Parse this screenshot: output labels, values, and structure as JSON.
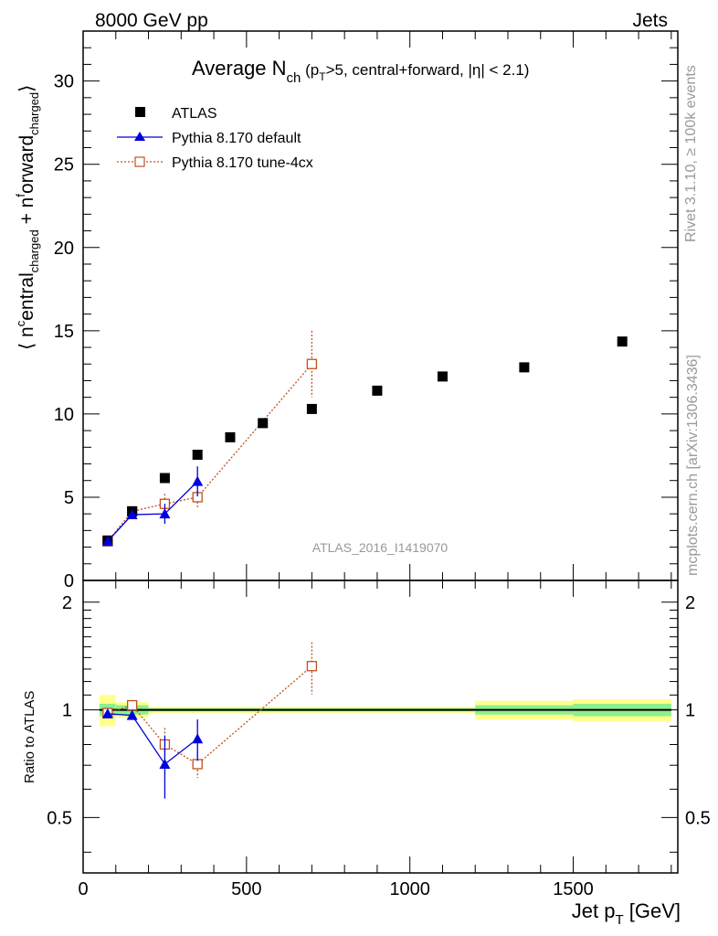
{
  "header": {
    "left": "8000 GeV pp",
    "right": "Jets"
  },
  "side_labels": {
    "rivet": "Rivet 3.1.10, ≥ 100k events",
    "mcplots": "mcplots.cern.ch [arXiv:1306.3436]"
  },
  "title": {
    "main": "Average N",
    "sub": "ch",
    "cut_a": " (p",
    "cut_sub": "T",
    "cut_b": ">5, central+forward, |η| < 2.1)"
  },
  "analysis_id": "ATLAS_2016_I1419070",
  "y_axis": {
    "open": "⟨ n",
    "sup1": "c",
    "mid1": "entral",
    "sub1": "charged",
    "mid2": " + n",
    "sup2": "f",
    "mid3": "orward",
    "sub2": "charged",
    "close": "⟩"
  },
  "x_axis": {
    "label_main": "Jet p",
    "label_sub": "T",
    "label_unit": " [GeV]"
  },
  "ratio_ylabel": "Ratio to ATLAS",
  "legend": [
    {
      "name": "ATLAS",
      "color": "#000000",
      "marker": "filled-square"
    },
    {
      "name": "Pythia 8.170 default",
      "color": "#0000dd",
      "marker": "filled-triangle"
    },
    {
      "name": "Pythia 8.170 tune-4cx",
      "color": "#c0501e",
      "marker": "open-square"
    }
  ],
  "chart_data": [
    {
      "type": "scatter",
      "panel": "main",
      "xlim": [
        0,
        1820
      ],
      "ylim": [
        0,
        33
      ],
      "xticks": [
        0,
        500,
        1000,
        1500
      ],
      "yticks": [
        0,
        5,
        10,
        15,
        20,
        25,
        30
      ],
      "xlabel": "Jet pT [GeV]",
      "ylabel": "⟨ n_central_charged + n_forward_charged ⟩",
      "series": [
        {
          "name": "ATLAS",
          "color": "#000000",
          "x": [
            75,
            150,
            250,
            350,
            450,
            550,
            700,
            900,
            1100,
            1350,
            1650
          ],
          "y": [
            2.4,
            4.15,
            6.15,
            7.55,
            8.6,
            9.45,
            10.3,
            11.4,
            12.25,
            12.8,
            14.35
          ]
        },
        {
          "name": "Pythia 8.170 default",
          "color": "#0000dd",
          "x": [
            75,
            150,
            250,
            350
          ],
          "y": [
            2.35,
            3.95,
            4.0,
            5.95
          ],
          "yerr": [
            0.1,
            0.15,
            0.6,
            0.9
          ]
        },
        {
          "name": "Pythia 8.170 tune-4cx",
          "color": "#c0501e",
          "x": [
            75,
            150,
            250,
            350,
            700
          ],
          "y": [
            2.35,
            4.15,
            4.6,
            5.0,
            13.0
          ],
          "yerr": [
            0.05,
            0.15,
            0.6,
            0.6,
            2.0
          ]
        }
      ]
    },
    {
      "type": "scatter",
      "panel": "ratio",
      "xlim": [
        0,
        1820
      ],
      "ylim": [
        0.35,
        2.3
      ],
      "yticks": [
        0.5,
        1,
        2
      ],
      "ylabel": "Ratio to ATLAS",
      "reference_line": 1.0,
      "uncertainty_bands": [
        {
          "x0": 50,
          "x1": 100,
          "stat": 0.04,
          "total": 0.1
        },
        {
          "x0": 100,
          "x1": 200,
          "stat": 0.03,
          "total": 0.05
        },
        {
          "x0": 200,
          "x1": 1200,
          "stat": 0.01,
          "total": 0.02
        },
        {
          "x0": 1200,
          "x1": 1500,
          "stat": 0.03,
          "total": 0.06
        },
        {
          "x0": 1500,
          "x1": 1800,
          "stat": 0.04,
          "total": 0.07
        }
      ],
      "series": [
        {
          "name": "Pythia 8.170 default",
          "color": "#0000dd",
          "x": [
            75,
            150,
            250,
            350
          ],
          "y": [
            0.975,
            0.965,
            0.705,
            0.83
          ],
          "yerr": [
            0.02,
            0.02,
            0.14,
            0.11
          ]
        },
        {
          "name": "Pythia 8.170 tune-4cx",
          "color": "#c0501e",
          "x": [
            75,
            150,
            250,
            350,
            700
          ],
          "y": [
            0.98,
            1.03,
            0.8,
            0.705,
            1.325
          ],
          "yerr": [
            0.01,
            0.02,
            0.09,
            0.06,
            0.22
          ]
        }
      ]
    }
  ]
}
